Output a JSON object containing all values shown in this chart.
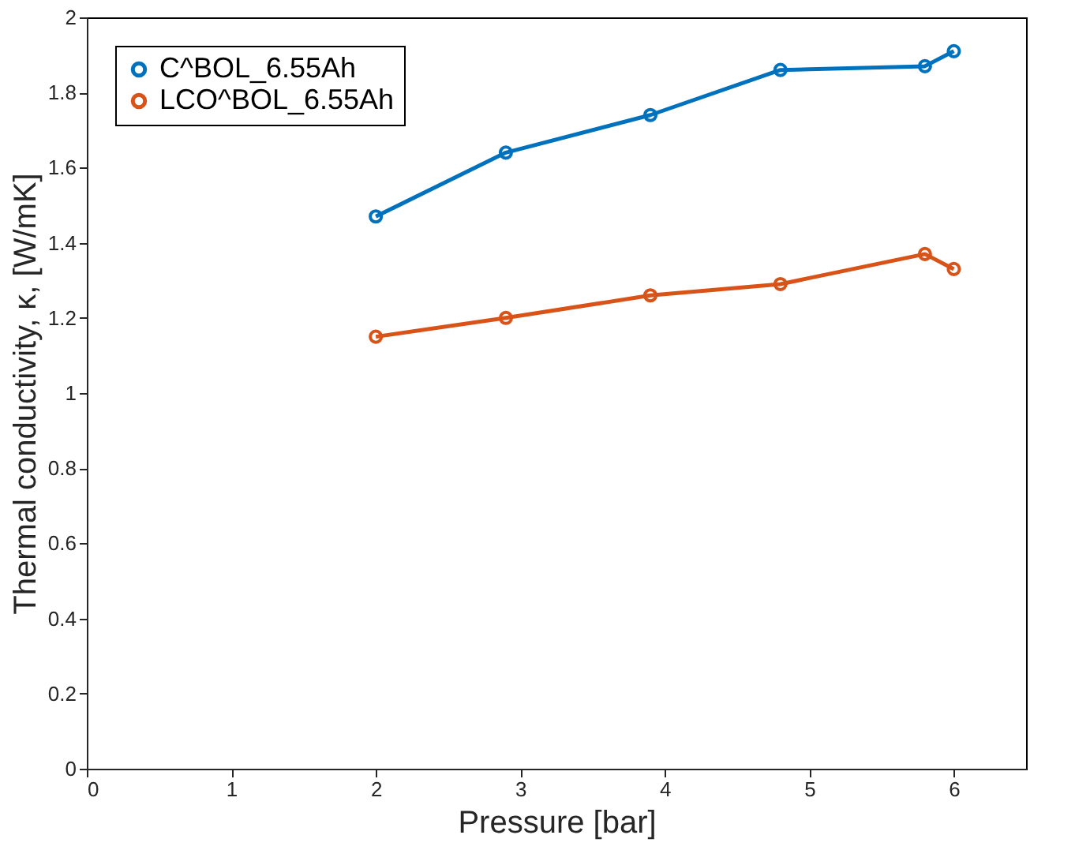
{
  "chart_data": {
    "type": "line",
    "xlabel": "Pressure [bar]",
    "ylabel": "Thermal conductivity, κ, [W/mK]",
    "x": [
      2,
      2.9,
      3.9,
      4.8,
      5.8,
      6.0
    ],
    "series": [
      {
        "name": "C^BOL_6.55Ah",
        "color": "#0072bd",
        "values": [
          1.47,
          1.64,
          1.74,
          1.86,
          1.87,
          1.91
        ]
      },
      {
        "name": "LCO^BOL_6.55Ah",
        "color": "#d95319",
        "values": [
          1.15,
          1.2,
          1.26,
          1.29,
          1.37,
          1.33
        ]
      }
    ],
    "xlim": [
      0,
      6.5
    ],
    "xticks": [
      0,
      1,
      2,
      3,
      4,
      5,
      6
    ],
    "ylim": [
      0,
      2
    ],
    "yticks": [
      0,
      0.2,
      0.4,
      0.6,
      0.8,
      1,
      1.2,
      1.4,
      1.6,
      1.8,
      2
    ],
    "grid": false,
    "legend": "top left",
    "marker": "circle",
    "line_style": "solid"
  }
}
